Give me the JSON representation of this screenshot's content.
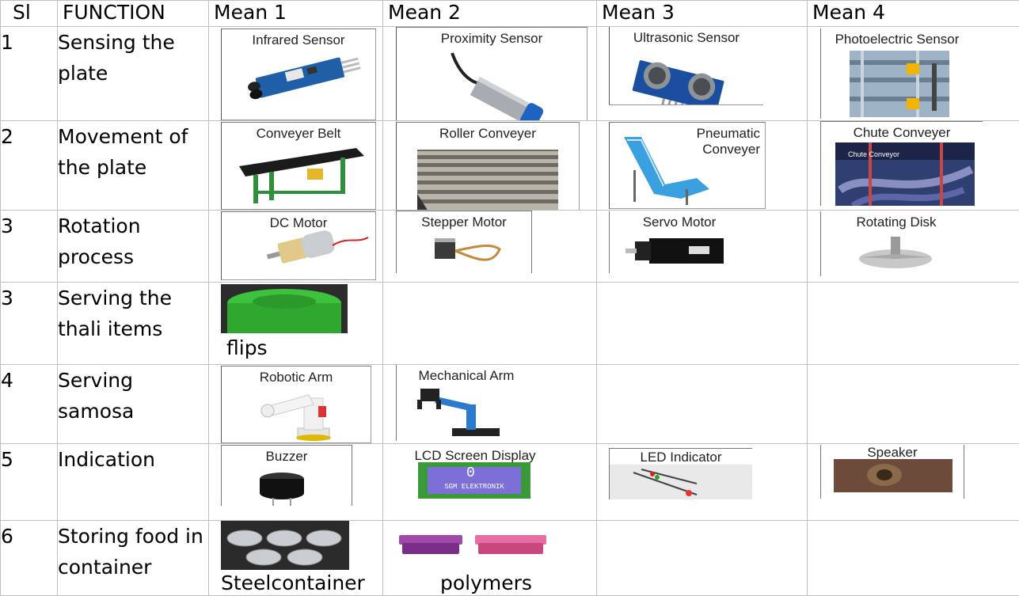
{
  "header": {
    "sl": "Sl",
    "function": "FUNCTION",
    "mean1": "Mean 1",
    "mean2": "Mean 2",
    "mean3": "Mean 3",
    "mean4": "Mean 4"
  },
  "rows": [
    {
      "sl": "1",
      "function": "Sensing the plate",
      "means": [
        "Infrared Sensor",
        "Proximity Sensor",
        "Ultrasonic Sensor",
        "Photoelectric Sensor"
      ]
    },
    {
      "sl": "2",
      "function": "Movement of the plate",
      "means": [
        "Conveyer Belt",
        "Roller Conveyer",
        "Pneumatic Conveyer",
        "Chute Conveyer"
      ],
      "extra": {
        "chute_inner": "Chute Conveyor",
        "pneumatic_line1": "Pneumatic",
        "pneumatic_line2": "Conveyer"
      }
    },
    {
      "sl": "3",
      "function": "Rotation process",
      "means": [
        "DC Motor",
        "Stepper Motor",
        "Servo Motor",
        "Rotating Disk"
      ]
    },
    {
      "sl": "3",
      "function": "Serving the thali items",
      "means": [
        "flips"
      ]
    },
    {
      "sl": "4",
      "function": "Serving samosa",
      "means": [
        "Robotic Arm",
        "Mechanical Arm"
      ]
    },
    {
      "sl": "5",
      "function": "Indication",
      "means": [
        "Buzzer",
        "LCD Screen Display",
        "LED Indicator",
        "Speaker"
      ],
      "extra": {
        "lcd_digit": "0",
        "lcd_text": "SGM ELEKTRONIK"
      }
    },
    {
      "sl": "6",
      "function": "Storing food in container",
      "means": [
        "Steelcontainer",
        "polymers"
      ]
    }
  ],
  "colors": {
    "grid": "#bfbfbf",
    "pcb_blue": "#1f5fa8",
    "conveyor_green": "#2f8f3a",
    "lcd_purple": "#7b6fd8",
    "lid_green": "#3cc23c"
  }
}
